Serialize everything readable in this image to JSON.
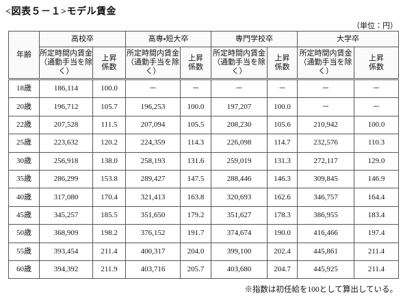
{
  "header": {
    "title": "<図表５－１>モデル賃金",
    "unit": "（単位：円）"
  },
  "table": {
    "age_header": "年齢",
    "groups": [
      "高校卒",
      "高専・短大卒",
      "専門学校卒",
      "大学卒"
    ],
    "subheaders": {
      "wage": [
        "所定時間内賃金",
        "（通勤手当を除く）"
      ],
      "coef": [
        "上昇",
        "係数"
      ]
    },
    "rows": [
      [
        "18歳",
        "186,114",
        "100.0",
        "－",
        "－",
        "－",
        "－",
        "－",
        "－"
      ],
      [
        "20歳",
        "196,712",
        "105.7",
        "196,253",
        "100.0",
        "197,207",
        "100.0",
        "－",
        "－"
      ],
      [
        "22歳",
        "207,528",
        "111.5",
        "207,094",
        "105.5",
        "208,230",
        "105.6",
        "210,942",
        "100.0"
      ],
      [
        "25歳",
        "223,632",
        "120.2",
        "224,359",
        "114.3",
        "226,098",
        "114.7",
        "232,576",
        "110.3"
      ],
      [
        "30歳",
        "256,918",
        "138.0",
        "258,193",
        "131.6",
        "259,019",
        "131.3",
        "272,117",
        "129.0"
      ],
      [
        "35歳",
        "286,299",
        "153.8",
        "289,427",
        "147.5",
        "288,446",
        "146.3",
        "309,845",
        "146.9"
      ],
      [
        "40歳",
        "317,080",
        "170.4",
        "321,413",
        "163.8",
        "320,693",
        "162.6",
        "346,757",
        "164.4"
      ],
      [
        "45歳",
        "345,257",
        "185.5",
        "351,650",
        "179.2",
        "351,627",
        "178.3",
        "386,955",
        "183.4"
      ],
      [
        "50歳",
        "368,909",
        "198.2",
        "376,152",
        "191.7",
        "374,674",
        "190.0",
        "416,466",
        "197.4"
      ],
      [
        "55歳",
        "393,454",
        "211.4",
        "400,317",
        "204.0",
        "399,100",
        "202.4",
        "445,861",
        "211.4"
      ],
      [
        "60歳",
        "394,392",
        "211.9",
        "403,716",
        "205.7",
        "403,680",
        "204.7",
        "445,925",
        "211.4"
      ]
    ]
  },
  "footer": {
    "note": "※指数は初任給を100として算出している。"
  }
}
